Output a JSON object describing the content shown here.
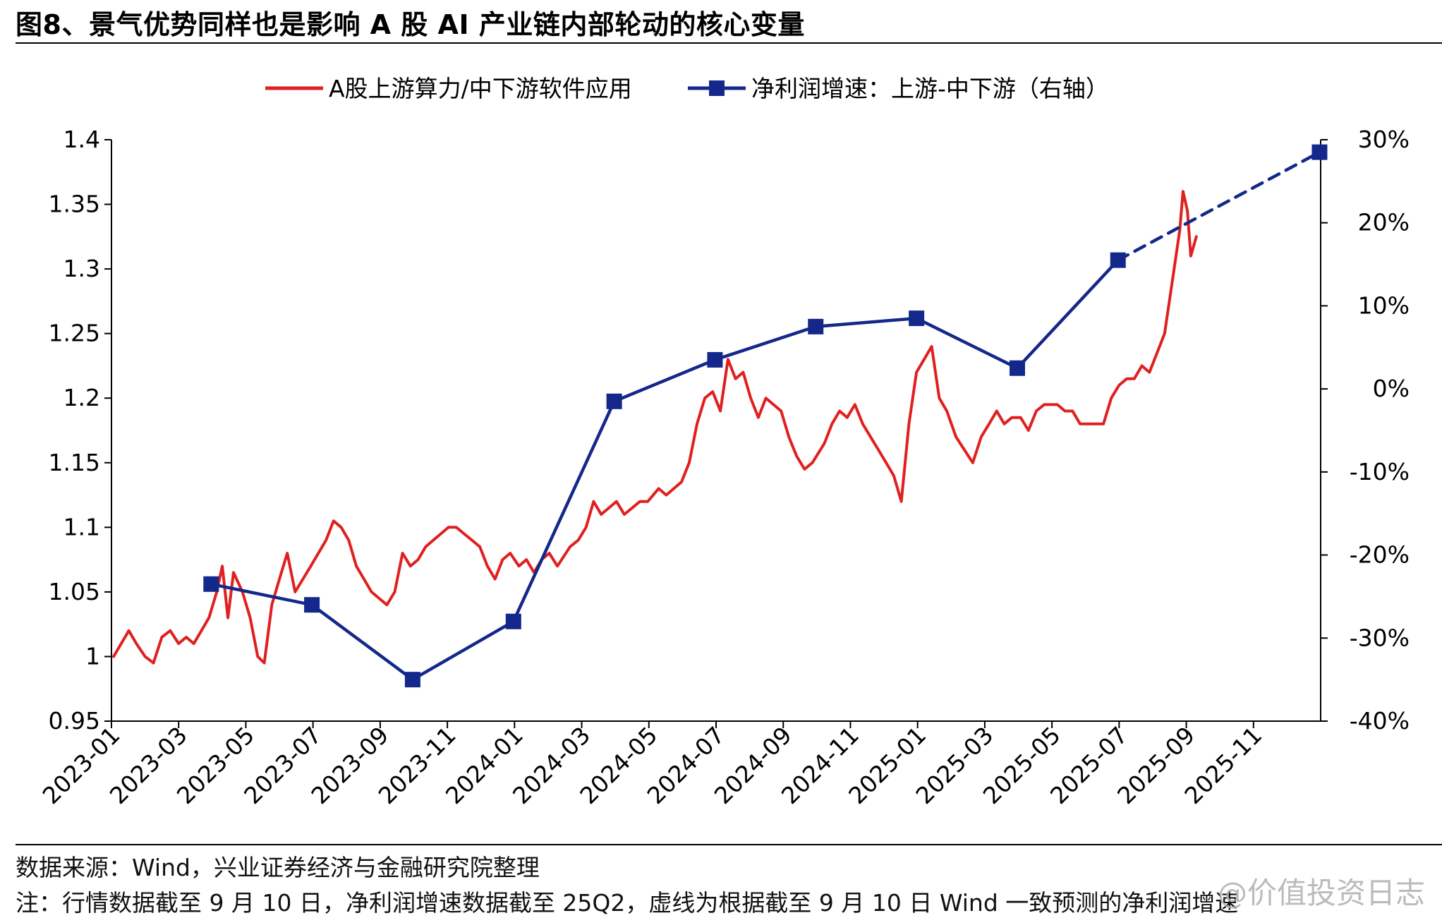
{
  "title": "图8、景气优势同样也是影响 A 股 AI 产业链内部轮动的核心变量",
  "source": "数据来源：Wind，兴业证券经济与金融研究院整理",
  "note": "注：行情数据截至 9 月 10 日，净利润增速数据截至 25Q2，虚线为根据截至 9 月 10 日 Wind 一致预测的净利润增速",
  "watermark": "@价值投资日志",
  "chart_data": {
    "type": "line",
    "x_ticks": [
      "2023-01",
      "2023-03",
      "2023-05",
      "2023-07",
      "2023-09",
      "2023-11",
      "2024-01",
      "2024-03",
      "2024-05",
      "2024-07",
      "2024-09",
      "2024-11",
      "2025-01",
      "2025-03",
      "2025-05",
      "2025-07",
      "2025-09",
      "2025-11"
    ],
    "x_range": [
      "2023-01",
      "2025-12"
    ],
    "y_left": {
      "ticks": [
        "0.95",
        "1",
        "1.05",
        "1.1",
        "1.15",
        "1.2",
        "1.25",
        "1.3",
        "1.35",
        "1.4"
      ],
      "range": [
        0.95,
        1.4
      ]
    },
    "y_right": {
      "ticks": [
        "-40%",
        "-30%",
        "-20%",
        "-10%",
        "0%",
        "10%",
        "20%",
        "30%"
      ],
      "range": [
        -40,
        30
      ],
      "unit": "%"
    },
    "legend_position": "top-center",
    "colors": {
      "ratio": "#e02020",
      "growth": "#13288a"
    },
    "series": [
      {
        "name": "A股上游算力/中下游软件应用",
        "axis": "left",
        "style": "solid",
        "points": [
          [
            "2023-01-03",
            1.0
          ],
          [
            "2023-01-10",
            1.01
          ],
          [
            "2023-01-17",
            1.02
          ],
          [
            "2023-01-24",
            1.01
          ],
          [
            "2023-02-01",
            1.0
          ],
          [
            "2023-02-08",
            0.995
          ],
          [
            "2023-02-15",
            1.015
          ],
          [
            "2023-02-22",
            1.02
          ],
          [
            "2023-03-01",
            1.01
          ],
          [
            "2023-03-08",
            1.015
          ],
          [
            "2023-03-15",
            1.01
          ],
          [
            "2023-03-22",
            1.02
          ],
          [
            "2023-03-29",
            1.03
          ],
          [
            "2023-04-05",
            1.05
          ],
          [
            "2023-04-10",
            1.07
          ],
          [
            "2023-04-15",
            1.03
          ],
          [
            "2023-04-20",
            1.065
          ],
          [
            "2023-04-28",
            1.05
          ],
          [
            "2023-05-05",
            1.03
          ],
          [
            "2023-05-12",
            1.0
          ],
          [
            "2023-05-18",
            0.995
          ],
          [
            "2023-05-25",
            1.04
          ],
          [
            "2023-06-01",
            1.06
          ],
          [
            "2023-06-08",
            1.08
          ],
          [
            "2023-06-15",
            1.05
          ],
          [
            "2023-06-22",
            1.06
          ],
          [
            "2023-06-29",
            1.07
          ],
          [
            "2023-07-06",
            1.08
          ],
          [
            "2023-07-13",
            1.09
          ],
          [
            "2023-07-20",
            1.105
          ],
          [
            "2023-07-27",
            1.1
          ],
          [
            "2023-08-03",
            1.09
          ],
          [
            "2023-08-10",
            1.07
          ],
          [
            "2023-08-17",
            1.06
          ],
          [
            "2023-08-24",
            1.05
          ],
          [
            "2023-08-31",
            1.045
          ],
          [
            "2023-09-07",
            1.04
          ],
          [
            "2023-09-14",
            1.05
          ],
          [
            "2023-09-21",
            1.08
          ],
          [
            "2023-09-28",
            1.07
          ],
          [
            "2023-10-05",
            1.075
          ],
          [
            "2023-10-12",
            1.085
          ],
          [
            "2023-10-19",
            1.09
          ],
          [
            "2023-10-26",
            1.095
          ],
          [
            "2023-11-02",
            1.1
          ],
          [
            "2023-11-09",
            1.1
          ],
          [
            "2023-11-16",
            1.095
          ],
          [
            "2023-11-23",
            1.09
          ],
          [
            "2023-11-30",
            1.085
          ],
          [
            "2023-12-07",
            1.07
          ],
          [
            "2023-12-14",
            1.06
          ],
          [
            "2023-12-21",
            1.075
          ],
          [
            "2023-12-28",
            1.08
          ],
          [
            "2024-01-05",
            1.07
          ],
          [
            "2024-01-12",
            1.075
          ],
          [
            "2024-01-19",
            1.065
          ],
          [
            "2024-01-26",
            1.075
          ],
          [
            "2024-02-02",
            1.08
          ],
          [
            "2024-02-09",
            1.07
          ],
          [
            "2024-02-20",
            1.085
          ],
          [
            "2024-02-27",
            1.09
          ],
          [
            "2024-03-05",
            1.1
          ],
          [
            "2024-03-12",
            1.12
          ],
          [
            "2024-03-19",
            1.11
          ],
          [
            "2024-03-26",
            1.115
          ],
          [
            "2024-04-02",
            1.12
          ],
          [
            "2024-04-09",
            1.11
          ],
          [
            "2024-04-16",
            1.115
          ],
          [
            "2024-04-23",
            1.12
          ],
          [
            "2024-04-30",
            1.12
          ],
          [
            "2024-05-10",
            1.13
          ],
          [
            "2024-05-17",
            1.125
          ],
          [
            "2024-05-24",
            1.13
          ],
          [
            "2024-05-31",
            1.135
          ],
          [
            "2024-06-07",
            1.15
          ],
          [
            "2024-06-14",
            1.18
          ],
          [
            "2024-06-21",
            1.2
          ],
          [
            "2024-06-28",
            1.205
          ],
          [
            "2024-07-05",
            1.19
          ],
          [
            "2024-07-12",
            1.23
          ],
          [
            "2024-07-19",
            1.215
          ],
          [
            "2024-07-26",
            1.22
          ],
          [
            "2024-08-02",
            1.2
          ],
          [
            "2024-08-09",
            1.185
          ],
          [
            "2024-08-16",
            1.2
          ],
          [
            "2024-08-23",
            1.195
          ],
          [
            "2024-08-30",
            1.19
          ],
          [
            "2024-09-06",
            1.17
          ],
          [
            "2024-09-13",
            1.155
          ],
          [
            "2024-09-20",
            1.145
          ],
          [
            "2024-09-27",
            1.15
          ],
          [
            "2024-10-08",
            1.165
          ],
          [
            "2024-10-15",
            1.18
          ],
          [
            "2024-10-22",
            1.19
          ],
          [
            "2024-10-29",
            1.185
          ],
          [
            "2024-11-05",
            1.195
          ],
          [
            "2024-11-12",
            1.18
          ],
          [
            "2024-11-19",
            1.17
          ],
          [
            "2024-11-26",
            1.16
          ],
          [
            "2024-12-03",
            1.15
          ],
          [
            "2024-12-10",
            1.14
          ],
          [
            "2024-12-17",
            1.12
          ],
          [
            "2024-12-24",
            1.18
          ],
          [
            "2024-12-31",
            1.22
          ],
          [
            "2025-01-07",
            1.23
          ],
          [
            "2025-01-14",
            1.24
          ],
          [
            "2025-01-21",
            1.2
          ],
          [
            "2025-01-28",
            1.19
          ],
          [
            "2025-02-05",
            1.17
          ],
          [
            "2025-02-12",
            1.16
          ],
          [
            "2025-02-19",
            1.15
          ],
          [
            "2025-02-26",
            1.17
          ],
          [
            "2025-03-05",
            1.18
          ],
          [
            "2025-03-12",
            1.19
          ],
          [
            "2025-03-19",
            1.18
          ],
          [
            "2025-03-26",
            1.185
          ],
          [
            "2025-04-03",
            1.185
          ],
          [
            "2025-04-10",
            1.175
          ],
          [
            "2025-04-17",
            1.19
          ],
          [
            "2025-04-24",
            1.195
          ],
          [
            "2025-05-06",
            1.195
          ],
          [
            "2025-05-13",
            1.19
          ],
          [
            "2025-05-20",
            1.19
          ],
          [
            "2025-05-27",
            1.18
          ],
          [
            "2025-06-03",
            1.18
          ],
          [
            "2025-06-10",
            1.18
          ],
          [
            "2025-06-17",
            1.18
          ],
          [
            "2025-06-24",
            1.2
          ],
          [
            "2025-07-01",
            1.21
          ],
          [
            "2025-07-08",
            1.215
          ],
          [
            "2025-07-15",
            1.215
          ],
          [
            "2025-07-22",
            1.225
          ],
          [
            "2025-07-29",
            1.22
          ],
          [
            "2025-08-05",
            1.235
          ],
          [
            "2025-08-12",
            1.25
          ],
          [
            "2025-08-19",
            1.29
          ],
          [
            "2025-08-26",
            1.33
          ],
          [
            "2025-08-29",
            1.36
          ],
          [
            "2025-09-02",
            1.345
          ],
          [
            "2025-09-05",
            1.31
          ],
          [
            "2025-09-10",
            1.325
          ]
        ]
      },
      {
        "name": "净利润增速：上游-中下游（右轴）",
        "axis": "right",
        "style": "solid-with-square-markers",
        "points": [
          [
            "2023-03-31",
            -23.5
          ],
          [
            "2023-06-30",
            -26
          ],
          [
            "2023-09-30",
            -35
          ],
          [
            "2023-12-31",
            -28
          ],
          [
            "2024-03-31",
            -1.5
          ],
          [
            "2024-06-30",
            3.5
          ],
          [
            "2024-09-30",
            7.5
          ],
          [
            "2024-12-31",
            8.5
          ],
          [
            "2025-03-31",
            2.5
          ],
          [
            "2025-06-30",
            15.5
          ]
        ]
      },
      {
        "name": "",
        "axis": "right",
        "style": "dashed-forecast",
        "points": [
          [
            "2025-06-30",
            15.5
          ],
          [
            "2025-12-31",
            28.5
          ]
        ]
      }
    ]
  }
}
